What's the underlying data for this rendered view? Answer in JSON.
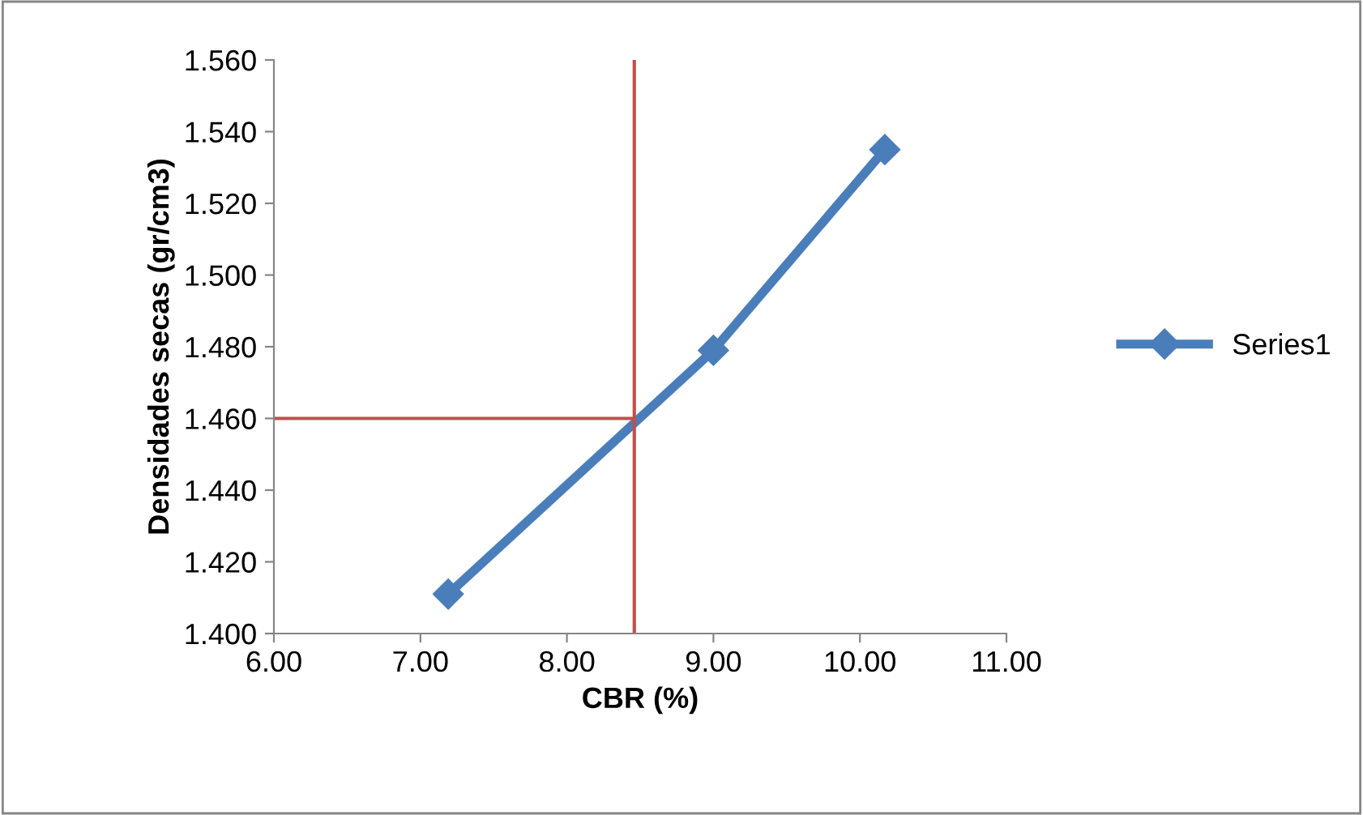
{
  "chart_data": {
    "type": "line",
    "xlabel": "CBR (%)",
    "ylabel": "Densidades secas (gr/cm3)",
    "x": [
      7.19,
      9.0,
      10.17
    ],
    "series": [
      {
        "name": "Series1",
        "color": "#4a7ebb",
        "values": [
          1.411,
          1.479,
          1.535
        ]
      }
    ],
    "marker": "diamond",
    "line_style": "solid",
    "legend": "right",
    "grid": false,
    "xlim": [
      6,
      11
    ],
    "xticks": [
      {
        "value": 6,
        "label": "6.00"
      },
      {
        "value": 7,
        "label": "7.00"
      },
      {
        "value": 8,
        "label": "8.00"
      },
      {
        "value": 9,
        "label": "9.00"
      },
      {
        "value": 10,
        "label": "10.00"
      },
      {
        "value": 11,
        "label": "11.00"
      }
    ],
    "ylim": [
      1.4,
      1.56
    ],
    "yticks": [
      {
        "value": 1.4,
        "label": "1.400"
      },
      {
        "value": 1.42,
        "label": "1.420"
      },
      {
        "value": 1.44,
        "label": "1.440"
      },
      {
        "value": 1.46,
        "label": "1.460"
      },
      {
        "value": 1.48,
        "label": "1.480"
      },
      {
        "value": 1.5,
        "label": "1.500"
      },
      {
        "value": 1.52,
        "label": "1.520"
      },
      {
        "value": 1.54,
        "label": "1.540"
      },
      {
        "value": 1.56,
        "label": "1.560"
      }
    ],
    "ref_lines": [
      {
        "axis": "x",
        "value": 8.46,
        "color": "#c0504d"
      },
      {
        "axis": "y",
        "value": 1.46,
        "color": "#c0504d"
      }
    ]
  }
}
